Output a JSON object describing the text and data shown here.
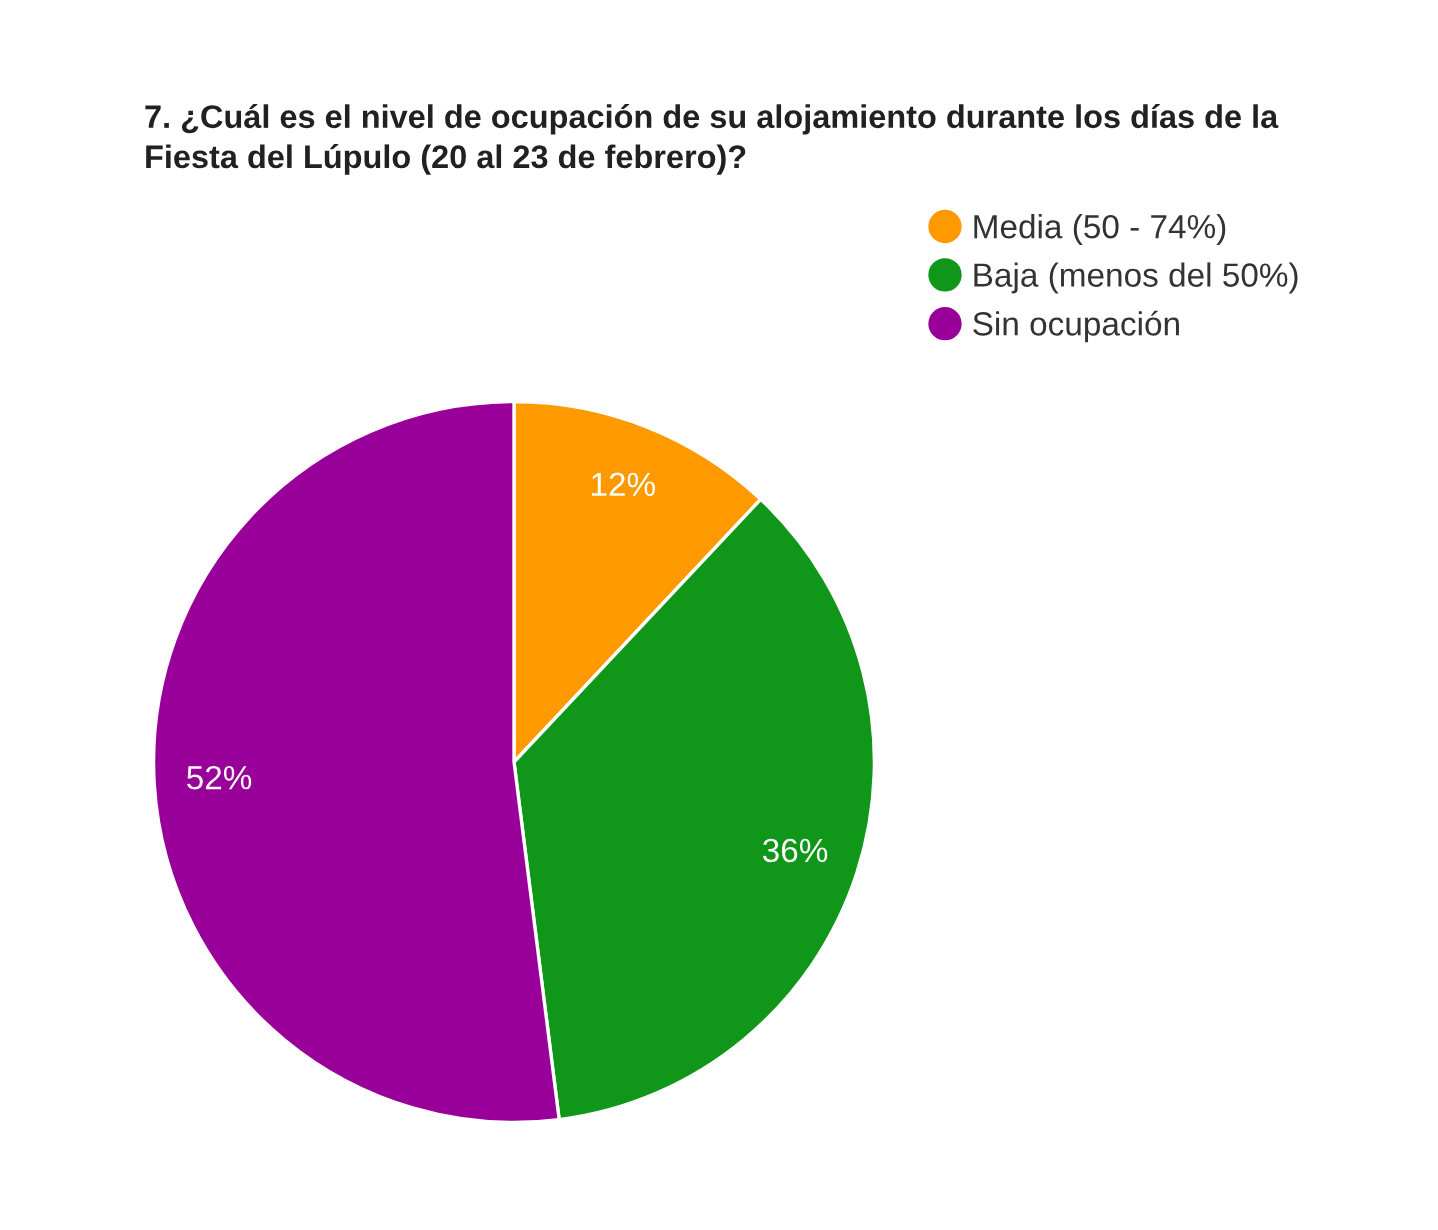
{
  "chart_data": {
    "type": "pie",
    "title": "7. ¿Cuál es el nivel de ocupación de su alojamiento durante los días de la Fiesta del Lúpulo (20 al 23 de febrero)?",
    "categories": [
      "Media (50 - 74%)",
      "Baja (menos del 50%)",
      "Sin ocupación"
    ],
    "values": [
      12,
      36,
      52
    ],
    "colors": [
      "#ff9900",
      "#109618",
      "#990099"
    ],
    "value_labels": [
      "12%",
      "36%",
      "52%"
    ],
    "legend": "top right"
  }
}
